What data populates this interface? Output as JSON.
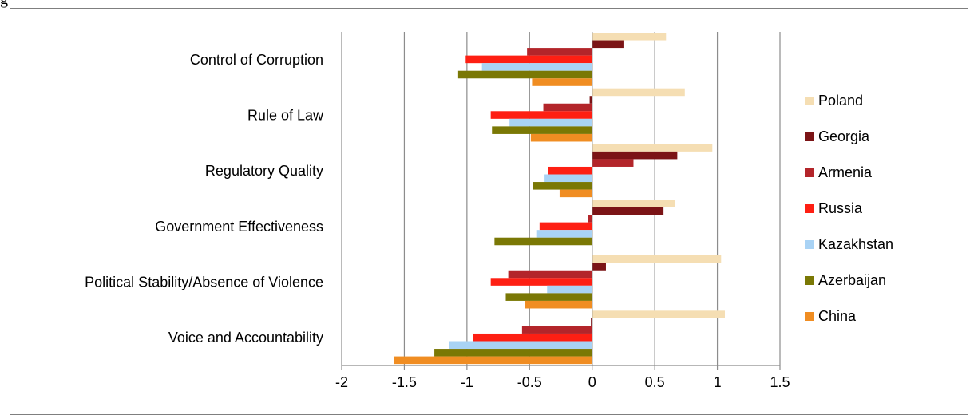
{
  "header": {
    "label": "g"
  },
  "chart_data": {
    "type": "bar",
    "orientation": "horizontal",
    "categories": [
      "Control of Corruption",
      "Rule of Law",
      "Regulatory Quality",
      "Government Effectiveness",
      "Political Stability/Absence of Violence",
      "Voice and Accountability"
    ],
    "series": [
      {
        "name": "Poland",
        "color": "#f5deb3",
        "values": [
          0.59,
          0.74,
          0.96,
          0.66,
          1.03,
          1.06
        ]
      },
      {
        "name": "Georgia",
        "color": "#7b1416",
        "values": [
          0.25,
          -0.02,
          0.68,
          0.57,
          0.11,
          -0.01
        ]
      },
      {
        "name": "Armenia",
        "color": "#b3252a",
        "values": [
          -0.52,
          -0.39,
          0.33,
          -0.03,
          -0.67,
          -0.56
        ]
      },
      {
        "name": "Russia",
        "color": "#fe1f13",
        "values": [
          -1.01,
          -0.81,
          -0.35,
          -0.42,
          -0.81,
          -0.95
        ]
      },
      {
        "name": "Kazakhstan",
        "color": "#a9d3f5",
        "values": [
          -0.88,
          -0.66,
          -0.38,
          -0.44,
          -0.36,
          -1.14
        ]
      },
      {
        "name": "Azerbaijan",
        "color": "#7a7805",
        "values": [
          -1.07,
          -0.8,
          -0.47,
          -0.78,
          -0.69,
          -1.26
        ]
      },
      {
        "name": "China",
        "color": "#f08d22",
        "values": [
          -0.48,
          -0.49,
          -0.26,
          0.0,
          -0.54,
          -1.58
        ]
      }
    ],
    "xlim": [
      -2,
      1.5
    ],
    "xticks": [
      "-2",
      "-1.5",
      "-1",
      "-0.5",
      "0",
      "0.5",
      "1",
      "1.5"
    ],
    "grid": true,
    "legend_position": "right",
    "title": "",
    "xlabel": "",
    "ylabel": ""
  }
}
